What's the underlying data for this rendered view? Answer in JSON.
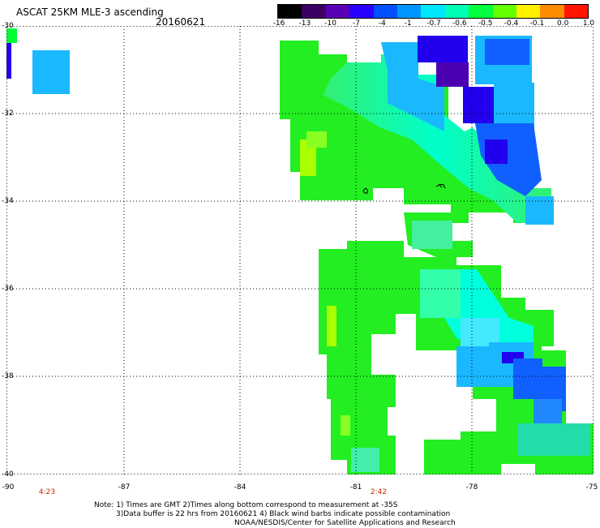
{
  "header": {
    "title": "ASCAT 25KM MLE-3 ascending",
    "date": "20160621"
  },
  "colorbar": {
    "labels": [
      "-16",
      "-13",
      "-10",
      "-7",
      "-4",
      "-1",
      "-0.7",
      "-0.6",
      "-0.5",
      "-0.4",
      "-0.1",
      "0.0",
      "1.0"
    ],
    "colors": [
      "#000000",
      "#3c0064",
      "#5a00b4",
      "#2800ff",
      "#0050ff",
      "#0096ff",
      "#00e6ff",
      "#00ffb4",
      "#00ff3c",
      "#64ff00",
      "#fff000",
      "#ff8c00",
      "#ff1400"
    ]
  },
  "axes": {
    "y_labels": [
      "-30",
      "-32",
      "-34",
      "-36",
      "-38",
      "-40"
    ],
    "x_labels": [
      "-90",
      "-87",
      "-84",
      "-81",
      "-78",
      "-75"
    ]
  },
  "time_labels": [
    "4:23",
    "2:42"
  ],
  "footer": {
    "line1": "Note: 1) Times are GMT 2)Times along bottom correspond to measurement at -35S",
    "line2": "3)Data buffer is 22 hrs from 20160621 4) Black wind barbs indicate possible contamination",
    "line3": "NOAA/NESDIS/Center for Satellite Applications and Research"
  },
  "colors": {
    "green": "#22ee22",
    "green_bright": "#00ff33",
    "yellow_green": "#aaff00",
    "cyan": "#00ffdd",
    "sky": "#1ab8ff",
    "blue": "#1060ff",
    "dark_blue": "#2200ee",
    "purple": "#4a00b0"
  }
}
